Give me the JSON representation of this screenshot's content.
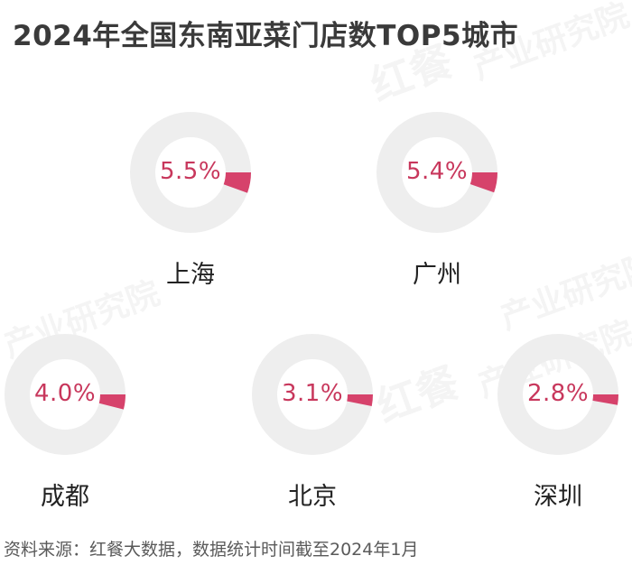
{
  "title": "2024年全国东南亚菜门店数TOP5城市",
  "source": "资料来源：红餐大数据，数据统计时间截至2024年1月",
  "watermark": {
    "brand": "红餐",
    "org": "产业研究院"
  },
  "colors": {
    "ring_track": "#eeeeee",
    "ring_fill": "#d6426b",
    "value_text": "#c8375c"
  },
  "chart_data": {
    "type": "donut",
    "title": "2024年全国东南亚菜门店数TOP5城市",
    "unit": "%",
    "categories": [
      "上海",
      "广州",
      "成都",
      "北京",
      "深圳"
    ],
    "values": [
      5.5,
      5.4,
      4.0,
      3.1,
      2.8
    ],
    "labels": [
      "5.5%",
      "5.4%",
      "4.0%",
      "3.1%",
      "2.8%"
    ]
  }
}
